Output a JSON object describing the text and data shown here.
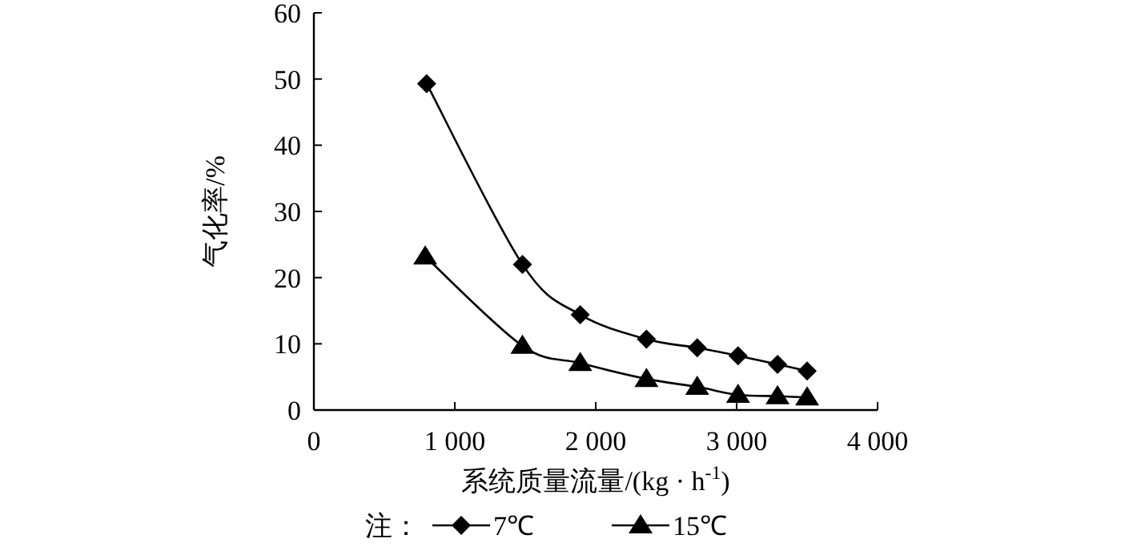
{
  "chart_data": {
    "type": "line",
    "xlabel": "系统质量流量/(kg · h$^{-1}$)",
    "ylabel": "气化率/%",
    "legend_title": "注：",
    "legend": "bottom",
    "line_style": "solid",
    "xlim": [
      0,
      4000
    ],
    "xticks": [
      0,
      {
        "value": 1000,
        "label": "1 000"
      },
      {
        "value": 2000,
        "label": "2 000"
      },
      {
        "value": 3000,
        "label": "3 000"
      },
      {
        "value": 4000,
        "label": "4 000"
      }
    ],
    "ylim": [
      0,
      60
    ],
    "yticks": [
      0,
      10,
      20,
      30,
      40,
      50,
      60
    ],
    "series": [
      {
        "name": "7℃",
        "color": "#000000",
        "marker": "diamond",
        "x": [
          800,
          1480,
          1890,
          2360,
          2720,
          3010,
          3290,
          3500
        ],
        "values": [
          49.3,
          22.0,
          14.4,
          10.7,
          9.4,
          8.2,
          6.9,
          5.9
        ]
      },
      {
        "name": "15℃",
        "color": "#000000",
        "marker": "triangle",
        "x": [
          790,
          1480,
          1890,
          2360,
          2720,
          3010,
          3290,
          3500
        ],
        "values": [
          23.2,
          9.7,
          7.1,
          4.7,
          3.5,
          2.3,
          2.1,
          1.9
        ]
      }
    ]
  }
}
